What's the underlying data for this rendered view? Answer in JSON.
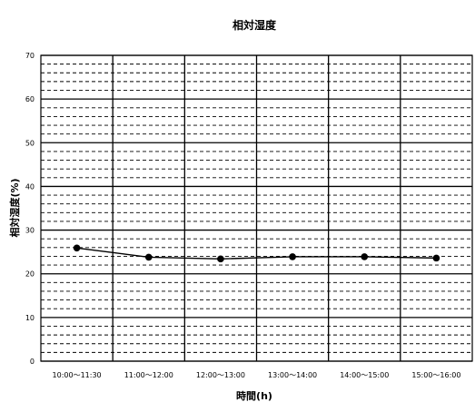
{
  "chart_data": {
    "type": "line",
    "title": "相対湿度",
    "xlabel": "時間(h)",
    "ylabel": "相対湿度(%)",
    "categories": [
      "10:00～11:30",
      "11:00～12:00",
      "12:00～13:00",
      "13:00～14:00",
      "14:00～15:00",
      "15:00～16:00"
    ],
    "series": [
      {
        "values": [
          25.9,
          23.8,
          23.4,
          23.9,
          23.9,
          23.6
        ]
      }
    ],
    "ylim": [
      0,
      70
    ],
    "yticks": [
      0,
      10,
      20,
      30,
      40,
      50,
      60,
      70
    ],
    "grid": true,
    "legend": "none",
    "colors": {
      "line": "#000000",
      "grid": "#000000"
    }
  }
}
